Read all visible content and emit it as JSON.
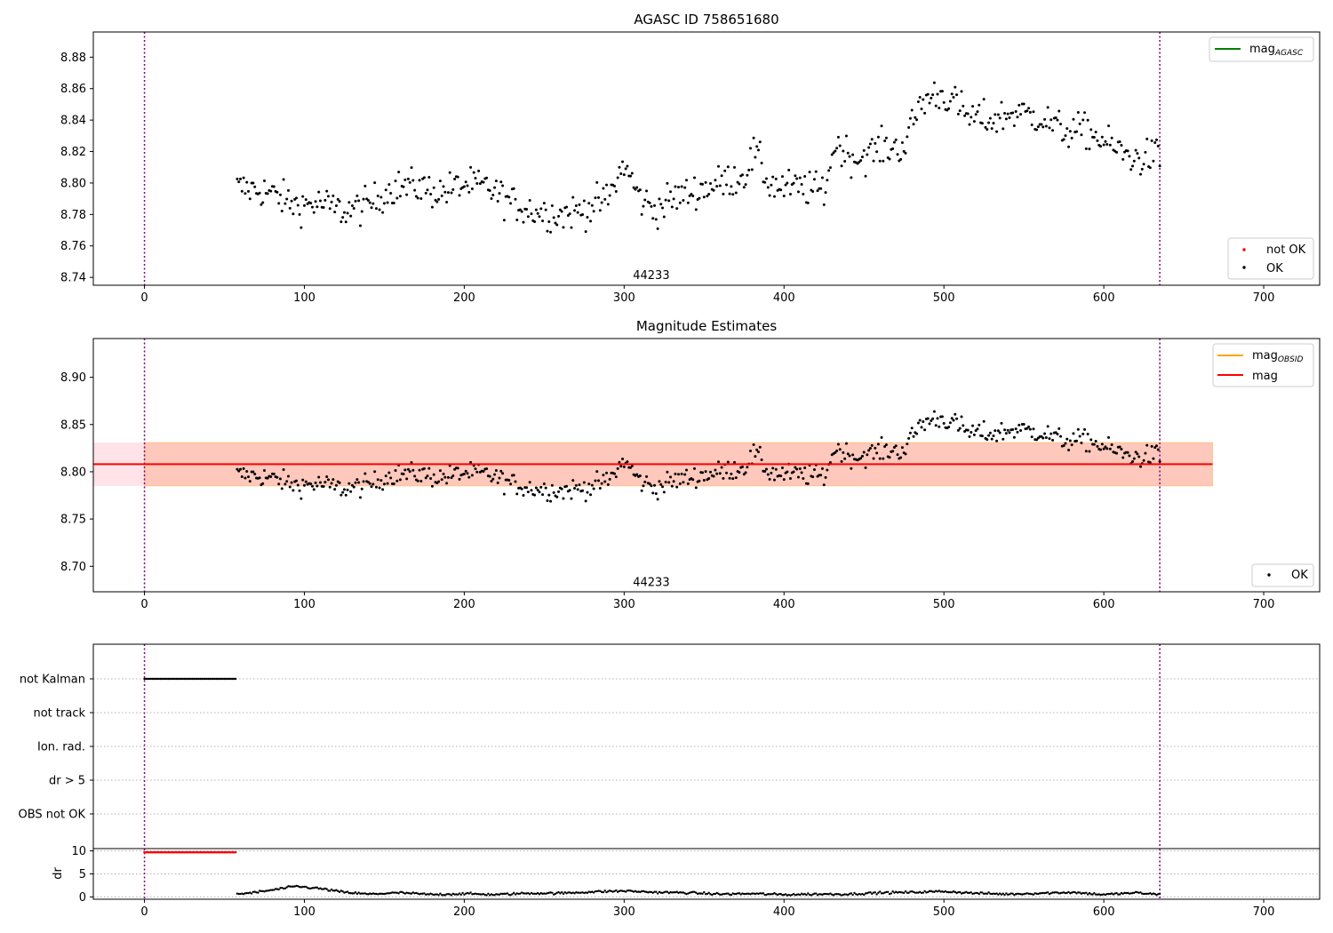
{
  "chart_data": [
    {
      "type": "scatter",
      "title": "AGASC ID 758651680",
      "xlim": [
        -32,
        735
      ],
      "ylim": [
        8.735,
        8.896
      ],
      "xticks": [
        0,
        100,
        200,
        300,
        400,
        500,
        600,
        700
      ],
      "yticks": [
        8.74,
        8.76,
        8.78,
        8.8,
        8.82,
        8.84,
        8.86,
        8.88
      ],
      "ytick_decimals": 2,
      "obsid_label": "44233",
      "obsid_label_x": 317,
      "obsid_label_y": 8.739,
      "vlines": [
        0,
        635
      ],
      "vline_color": "#800080",
      "legend_upper": {
        "position": "upper-right",
        "entries": [
          {
            "label": "mag",
            "subscript": "AGASC",
            "color": "#008000"
          }
        ]
      },
      "legend_lower": {
        "position": "lower-right",
        "entries": [
          {
            "label": "not OK",
            "color": "#ff0000"
          },
          {
            "label": "OK",
            "color": "#000000"
          }
        ]
      },
      "ok_series": {
        "name": "OK",
        "color": "#000000",
        "x_start": 58,
        "x_end": 635,
        "anchors": [
          [
            58,
            8.797
          ],
          [
            75,
            8.795
          ],
          [
            95,
            8.786
          ],
          [
            110,
            8.787
          ],
          [
            125,
            8.782
          ],
          [
            140,
            8.786
          ],
          [
            155,
            8.797
          ],
          [
            170,
            8.798
          ],
          [
            185,
            8.794
          ],
          [
            200,
            8.799
          ],
          [
            215,
            8.797
          ],
          [
            230,
            8.787
          ],
          [
            245,
            8.782
          ],
          [
            260,
            8.78
          ],
          [
            275,
            8.783
          ],
          [
            290,
            8.79
          ],
          [
            300,
            8.812
          ],
          [
            310,
            8.79
          ],
          [
            320,
            8.783
          ],
          [
            330,
            8.79
          ],
          [
            345,
            8.795
          ],
          [
            360,
            8.8
          ],
          [
            375,
            8.805
          ],
          [
            382,
            8.82
          ],
          [
            390,
            8.8
          ],
          [
            400,
            8.797
          ],
          [
            410,
            8.797
          ],
          [
            425,
            8.795
          ],
          [
            432,
            8.825
          ],
          [
            445,
            8.815
          ],
          [
            460,
            8.822
          ],
          [
            475,
            8.823
          ],
          [
            485,
            8.85
          ],
          [
            495,
            8.857
          ],
          [
            505,
            8.853
          ],
          [
            515,
            8.842
          ],
          [
            530,
            8.84
          ],
          [
            545,
            8.845
          ],
          [
            560,
            8.842
          ],
          [
            575,
            8.833
          ],
          [
            590,
            8.833
          ],
          [
            605,
            8.823
          ],
          [
            620,
            8.815
          ],
          [
            635,
            8.818
          ]
        ]
      },
      "notok_series": {
        "name": "not OK",
        "color": "#ff0000",
        "values": []
      }
    },
    {
      "type": "scatter",
      "title": "Magnitude Estimates",
      "xlim": [
        -32,
        735
      ],
      "ylim": [
        8.673,
        8.941
      ],
      "xticks": [
        0,
        100,
        200,
        300,
        400,
        500,
        600,
        700
      ],
      "yticks": [
        8.7,
        8.75,
        8.8,
        8.85,
        8.9
      ],
      "ytick_decimals": 2,
      "obsid_label": "44233",
      "obsid_label_x": 317,
      "obsid_label_y": 8.679,
      "vlines": [
        0,
        635
      ],
      "vline_color": "#800080",
      "legend_upper": {
        "position": "upper-right",
        "entries": [
          {
            "label": "mag",
            "subscript": "OBSID",
            "color": "#ffa500"
          },
          {
            "label": "mag",
            "subscript": "",
            "color": "#ff0000"
          }
        ]
      },
      "legend_lower": {
        "position": "lower-right",
        "entries": [
          {
            "label": "OK",
            "color": "#000000"
          }
        ]
      },
      "mag": 8.808,
      "mag_band": [
        8.785,
        8.831
      ],
      "mag_color": "#ff0000",
      "band_agasc": {
        "x": [
          -32,
          668
        ],
        "color": "#ffc0cb"
      },
      "band_obsid": {
        "x": [
          0,
          668
        ],
        "color": "#ffa07a"
      },
      "ok_series": {
        "name": "OK",
        "color": "#000000",
        "x_start": 58,
        "x_end": 635
      }
    },
    {
      "type": "scatter",
      "xlim": [
        -32,
        735
      ],
      "xticks": [
        0,
        100,
        200,
        300,
        400,
        500,
        600,
        700
      ],
      "flag_rows": [
        "not Kalman",
        "not track",
        "Ion. rad.",
        "dr > 5",
        "OBS not OK"
      ],
      "not_kalman_x": [
        0,
        57
      ],
      "vlines": [
        0,
        635
      ],
      "vline_color": "#800080"
    },
    {
      "type": "scatter",
      "ylabel": "dr",
      "xlim": [
        -32,
        735
      ],
      "ylim": [
        -0.5,
        10.5
      ],
      "yticks": [
        0,
        5,
        10
      ],
      "ytick_decimals": 0,
      "xticks": [
        0,
        100,
        200,
        300,
        400,
        500,
        600,
        700
      ],
      "vlines": [
        0,
        635
      ],
      "vline_color": "#800080",
      "red_points": {
        "color": "#ff0000",
        "x": [
          0,
          57
        ],
        "y": 9.7
      },
      "black_points": {
        "color": "#000000",
        "x_start": 58,
        "x_end": 635,
        "anchors": [
          [
            58,
            0.6
          ],
          [
            70,
            1.0
          ],
          [
            80,
            1.5
          ],
          [
            95,
            2.3
          ],
          [
            110,
            1.8
          ],
          [
            125,
            1.0
          ],
          [
            140,
            0.6
          ],
          [
            160,
            0.9
          ],
          [
            180,
            0.5
          ],
          [
            200,
            0.7
          ],
          [
            220,
            0.5
          ],
          [
            240,
            0.8
          ],
          [
            260,
            0.8
          ],
          [
            280,
            1.1
          ],
          [
            300,
            1.3
          ],
          [
            320,
            1.0
          ],
          [
            340,
            0.9
          ],
          [
            360,
            0.6
          ],
          [
            380,
            0.7
          ],
          [
            400,
            0.5
          ],
          [
            420,
            0.6
          ],
          [
            440,
            0.6
          ],
          [
            460,
            0.9
          ],
          [
            480,
            1.0
          ],
          [
            500,
            1.2
          ],
          [
            520,
            0.8
          ],
          [
            540,
            0.6
          ],
          [
            560,
            0.8
          ],
          [
            580,
            1.0
          ],
          [
            600,
            0.5
          ],
          [
            620,
            0.9
          ],
          [
            635,
            0.5
          ]
        ]
      }
    }
  ]
}
